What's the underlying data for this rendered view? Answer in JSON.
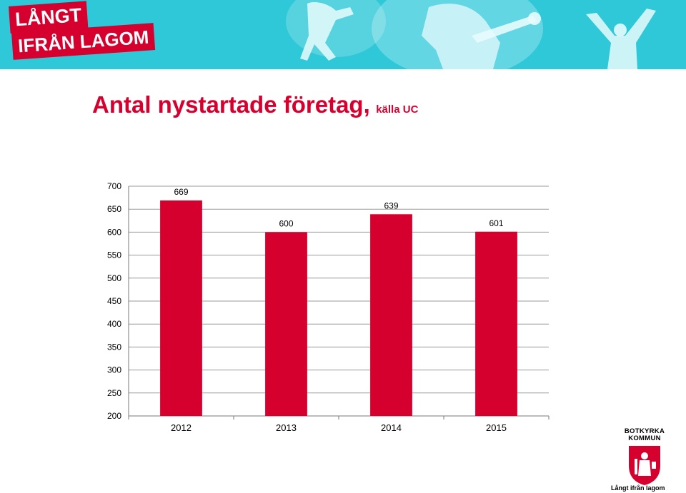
{
  "banner": {
    "logo_line1": "LÅNGT",
    "logo_line2": "IFRÅN LAGOM",
    "bg_color": "#2ec8d8",
    "logo_color": "#d6002e"
  },
  "slide": {
    "title": "Antal nystartade företag,",
    "subtitle": "källa UC"
  },
  "chart_data": {
    "type": "bar",
    "categories": [
      "2012",
      "2013",
      "2014",
      "2015"
    ],
    "values": [
      669,
      600,
      639,
      601
    ],
    "data_labels": [
      "669",
      "600",
      "639",
      "601"
    ],
    "ylim": [
      200,
      700
    ],
    "yticks": [
      "200",
      "250",
      "300",
      "350",
      "400",
      "450",
      "500",
      "550",
      "600",
      "650",
      "700"
    ],
    "title": "",
    "xlabel": "",
    "ylabel": "",
    "grid": true,
    "bar_color": "#d6002e"
  },
  "footer": {
    "kommun_line1": "BOTKYRKA",
    "kommun_line2": "KOMMUN",
    "slogan": "Långt ifrån lagom",
    "crest_icon": "botkyrka-crest-icon"
  }
}
